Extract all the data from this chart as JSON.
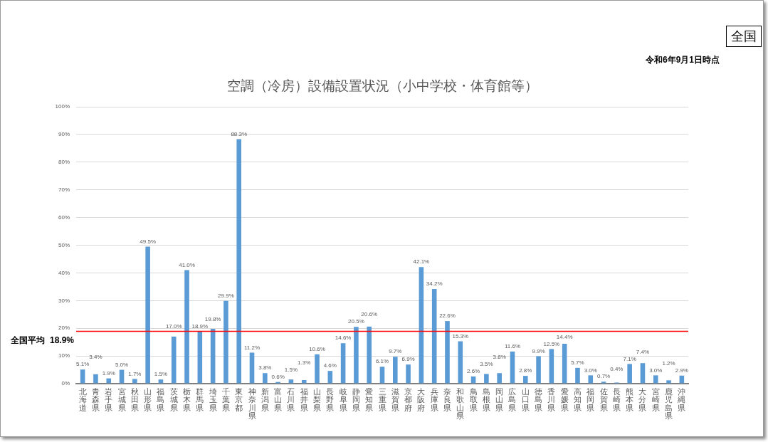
{
  "chart_data": {
    "type": "bar",
    "title": "空調（冷房）設備設置状況（小中学校・体育館等）",
    "categories": [
      "北海道",
      "青森県",
      "岩手県",
      "宮城県",
      "秋田県",
      "山形県",
      "福島県",
      "茨城県",
      "栃木県",
      "群馬県",
      "埼玉県",
      "千葉県",
      "東京都",
      "神奈川県",
      "新潟県",
      "富山県",
      "石川県",
      "福井県",
      "山梨県",
      "長野県",
      "岐阜県",
      "静岡県",
      "愛知県",
      "三重県",
      "滋賀県",
      "京都府",
      "大阪府",
      "兵庫県",
      "奈良県",
      "和歌山県",
      "鳥取県",
      "島根県",
      "岡山県",
      "広島県",
      "山口県",
      "徳島県",
      "香川県",
      "愛媛県",
      "高知県",
      "福岡県",
      "佐賀県",
      "長崎県",
      "熊本県",
      "大分県",
      "宮崎県",
      "鹿児島県",
      "沖縄県"
    ],
    "values": [
      5.1,
      3.4,
      1.9,
      5.0,
      1.7,
      49.5,
      1.5,
      17.0,
      41.0,
      18.9,
      19.8,
      29.9,
      88.3,
      11.2,
      3.8,
      0.6,
      1.5,
      1.3,
      10.6,
      4.6,
      14.6,
      20.5,
      20.6,
      6.1,
      9.7,
      6.9,
      42.1,
      34.2,
      22.6,
      15.3,
      2.6,
      3.5,
      3.8,
      11.6,
      2.8,
      9.9,
      12.5,
      14.4,
      5.7,
      3.0,
      0.7,
      0.4,
      7.1,
      7.4,
      3.0,
      1.2,
      2.9
    ],
    "value_labels": [
      "5.1%",
      "3.4%",
      "1.9%",
      "5.0%",
      "1.7%",
      "49.5%",
      "1.5%",
      "17.0%",
      "41.0%",
      "18.9%",
      "19.8%",
      "29.9%",
      "88.3%",
      "11.2%",
      "3.8%",
      "0.6%",
      "1.5%",
      "1.3%",
      "10.6%",
      "4.6%",
      "14.6%",
      "20.5%",
      "20.6%",
      "6.1%",
      "9.7%",
      "6.9%",
      "42.1%",
      "34.2%",
      "22.6%",
      "15.3%",
      "2.6%",
      "3.5%",
      "3.8%",
      "11.6%",
      "2.8%",
      "9.9%",
      "12.5%",
      "14.4%",
      "5.7%",
      "3.0%",
      "0.7%",
      "0.4%",
      "7.1%",
      "7.4%",
      "3.0%",
      "1.2%",
      "2.9%"
    ],
    "color": "#5b9bd5",
    "ylim": [
      0,
      100
    ],
    "yticks": [
      {
        "value": 0,
        "label": "0%"
      },
      {
        "value": 10,
        "label": "10%"
      },
      {
        "value": 20,
        "label": "20%"
      },
      {
        "value": 30,
        "label": "30%"
      },
      {
        "value": 40,
        "label": "40%"
      },
      {
        "value": 50,
        "label": "50%"
      },
      {
        "value": 60,
        "label": "60%"
      },
      {
        "value": 70,
        "label": "70%"
      },
      {
        "value": 80,
        "label": "80%"
      },
      {
        "value": 90,
        "label": "90%"
      },
      {
        "value": 100,
        "label": "100%"
      }
    ],
    "grid": "y",
    "ref_lines": [
      {
        "axis": "y",
        "value": 18.9,
        "label": "全国平均  18.9%",
        "color": "#ff0000"
      }
    ],
    "annotations": [
      "全国",
      "令和6年9月1日時点"
    ]
  }
}
